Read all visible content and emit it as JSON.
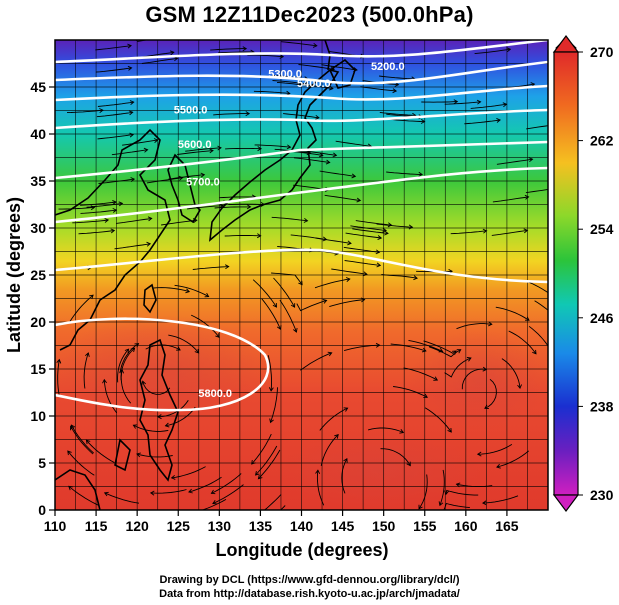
{
  "title": "GSM 12Z11Dec2023 (500.0hPa)",
  "credit_drawing": "Drawing by DCL (https://www.gfd-dennou.org/library/dcl/)",
  "credit_data": "Data from http://database.rish.kyoto-u.ac.jp/arch/jmadata/",
  "map": {
    "x_axis_title": "Longitude (degrees)",
    "y_axis_title": "Latitude  (degrees)",
    "lon_range": [
      110,
      170
    ],
    "lat_range": [
      0,
      50
    ],
    "lon_ticks": [
      "110",
      "115",
      "120",
      "125",
      "130",
      "135",
      "140",
      "145",
      "150",
      "155",
      "160",
      "165"
    ],
    "lat_ticks": [
      "0",
      "5",
      "10",
      "15",
      "20",
      "25",
      "30",
      "35",
      "40",
      "45"
    ],
    "field": "temperature (K), shaded",
    "contours": [
      {
        "label": "5200.0",
        "lon": 150.5,
        "lat": 46.8
      },
      {
        "label": "5300.0",
        "lon": 138.0,
        "lat": 46.0
      },
      {
        "label": "5400.0",
        "lon": 141.5,
        "lat": 45.0
      },
      {
        "label": "5500.0",
        "lon": 126.5,
        "lat": 42.2
      },
      {
        "label": "5600.0",
        "lon": 127.0,
        "lat": 38.5
      },
      {
        "label": "5700.0",
        "lon": 128.0,
        "lat": 34.5
      },
      {
        "label": "5800.0",
        "lon": 129.5,
        "lat": 12.0
      }
    ],
    "overlay": "wind streamlines",
    "coastlines": "Japan, Korea, China, Philippines, Taiwan"
  },
  "colorbar": {
    "labels": [
      "270",
      "262",
      "254",
      "246",
      "238",
      "230"
    ],
    "values": [
      270,
      262,
      254,
      246,
      238,
      230
    ],
    "range": [
      230,
      270
    ],
    "colors": [
      "#e23a2e",
      "#f2a01c",
      "#e4e81e",
      "#4fd023",
      "#00c8a8",
      "#19a6ea",
      "#1a3fd6",
      "#6a1fc0",
      "#cc1fc0"
    ]
  }
}
